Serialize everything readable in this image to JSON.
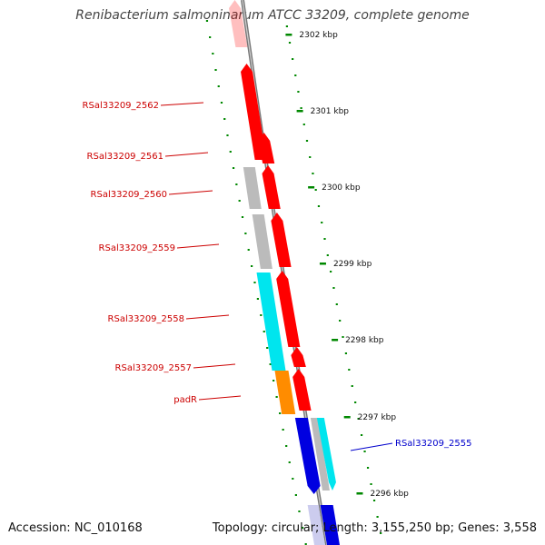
{
  "title": "Renibacterium salmoninarum ATCC 33209, complete genome",
  "footer": {
    "accession": "Accession: NC_010168",
    "stats": "Topology: circular; Length: 3,155,250 bp; Genes: 3,558"
  },
  "colors": {
    "forward_cds": "#ff0000",
    "reverse_cds": "#0000e0",
    "pseudo": "#bbbbbb",
    "cyan_gene": "#00e5ee",
    "orange_gene": "#ff8c00",
    "tick": "#008800",
    "backbone": "#888888",
    "forward_label": "#cc0000",
    "reverse_label": "#0000cc"
  },
  "scale": {
    "ticks": [
      {
        "label": "2302 kbp"
      },
      {
        "label": "2301 kbp"
      },
      {
        "label": "2300 kbp"
      },
      {
        "label": "2299 kbp"
      },
      {
        "label": "2298 kbp"
      },
      {
        "label": "2297 kbp"
      },
      {
        "label": "2296 kbp"
      }
    ]
  },
  "gene_labels": [
    {
      "text": "RSal33209_2562",
      "strand": "forward"
    },
    {
      "text": "RSal33209_2561",
      "strand": "forward"
    },
    {
      "text": "RSal33209_2560",
      "strand": "forward"
    },
    {
      "text": "RSal33209_2559",
      "strand": "forward"
    },
    {
      "text": "RSal33209_2558",
      "strand": "forward"
    },
    {
      "text": "RSal33209_2557",
      "strand": "forward"
    },
    {
      "text": "padR",
      "strand": "forward"
    },
    {
      "text": "RSal33209_2555",
      "strand": "reverse"
    }
  ]
}
